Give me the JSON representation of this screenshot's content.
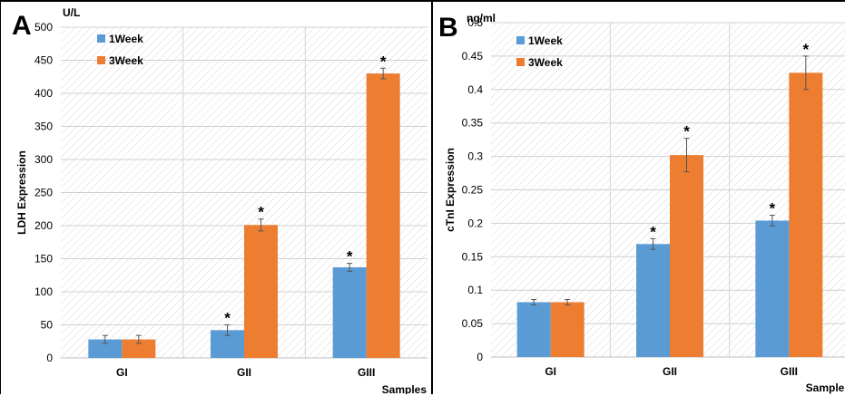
{
  "chart_data": [
    {
      "panel": "A",
      "type": "bar",
      "unit": "U/L",
      "ylabel": "LDH Expression",
      "xlabel": "Samples",
      "ylim": [
        0,
        500
      ],
      "yticks": [
        0,
        50,
        100,
        150,
        200,
        250,
        300,
        350,
        400,
        450,
        500
      ],
      "categories": [
        "GI",
        "GII",
        "GIII"
      ],
      "legend_position": "top-left",
      "grid": true,
      "significance_marker": "*",
      "series": [
        {
          "name": "1Week",
          "color": "#5b9bd5",
          "values": [
            28,
            42,
            137
          ],
          "errors": [
            6,
            8,
            6
          ],
          "significant": [
            false,
            true,
            true
          ]
        },
        {
          "name": "3Week",
          "color": "#ed7d31",
          "values": [
            28,
            201,
            430
          ],
          "errors": [
            6,
            9,
            8
          ],
          "significant": [
            false,
            true,
            true
          ]
        }
      ]
    },
    {
      "panel": "B",
      "type": "bar",
      "unit": "ng/ml",
      "ylabel": "cTnI  Expression",
      "xlabel": "Samples",
      "ylim": [
        0,
        0.5
      ],
      "yticks": [
        0,
        0.05,
        0.1,
        0.15,
        0.2,
        0.25,
        0.3,
        0.35,
        0.4,
        0.45,
        0.5
      ],
      "categories": [
        "GI",
        "GII",
        "GIII"
      ],
      "legend_position": "top-left",
      "grid": true,
      "significance_marker": "*",
      "series": [
        {
          "name": "1Week",
          "color": "#5b9bd5",
          "values": [
            0.082,
            0.169,
            0.204
          ],
          "errors": [
            0.004,
            0.008,
            0.008
          ],
          "significant": [
            false,
            true,
            true
          ]
        },
        {
          "name": "3Week",
          "color": "#ed7d31",
          "values": [
            0.082,
            0.302,
            0.425
          ],
          "errors": [
            0.004,
            0.025,
            0.025
          ],
          "significant": [
            false,
            true,
            true
          ]
        }
      ]
    }
  ]
}
